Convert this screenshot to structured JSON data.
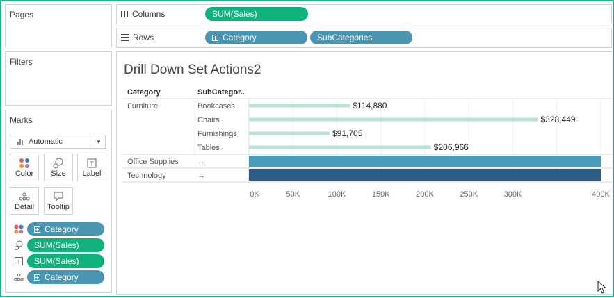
{
  "shelves": {
    "pages_title": "Pages",
    "filters_title": "Filters",
    "marks_title": "Marks",
    "columns_label": "Columns",
    "rows_label": "Rows",
    "columns_pill": "SUM(Sales)",
    "rows_pills": [
      "Category",
      "SubCategories"
    ]
  },
  "marks": {
    "mark_type": "Automatic",
    "buttons": [
      "Color",
      "Size",
      "Label",
      "Detail",
      "Tooltip"
    ],
    "cards": [
      {
        "icon": "color-dots-icon",
        "label": "Category",
        "color": "blue"
      },
      {
        "icon": "size-icon",
        "label": "SUM(Sales)",
        "color": "green"
      },
      {
        "icon": "label-icon",
        "label": "SUM(Sales)",
        "color": "green"
      },
      {
        "icon": "detail-icon",
        "label": "Category",
        "color": "blue"
      }
    ]
  },
  "view": {
    "title": "Drill Down Set Actions2",
    "header_category": "Category",
    "header_subcategory": "SubCategor.."
  },
  "chart_data": {
    "type": "bar",
    "orientation": "horizontal",
    "x_axis_ticks": [
      "0K",
      "50K",
      "100K",
      "150K",
      "200K",
      "250K",
      "300K",
      "400K"
    ],
    "xlim": [
      0,
      400000
    ],
    "rows": [
      {
        "category": "Furniture",
        "subcategory": "Bookcases",
        "value": 114880,
        "label": "$114,880",
        "color": "#b8e2d8",
        "thin": true
      },
      {
        "category": "",
        "subcategory": "Chairs",
        "value": 328449,
        "label": "$328,449",
        "color": "#b8e2d8",
        "thin": true
      },
      {
        "category": "",
        "subcategory": "Furnishings",
        "value": 91705,
        "label": "$91,705",
        "color": "#b8e2d8",
        "thin": true
      },
      {
        "category": "",
        "subcategory": "Tables",
        "value": 206966,
        "label": "$206,966",
        "color": "#b8e2d8",
        "thin": true
      },
      {
        "category": "Office Supplies",
        "subcategory": "→",
        "value": 400000,
        "label": "",
        "color": "#4a9bb8",
        "thin": false
      },
      {
        "category": "Technology",
        "subcategory": "→",
        "value": 400000,
        "label": "",
        "color": "#2c5b86",
        "thin": false
      }
    ],
    "colors": {
      "accent_green": "#0fb17c",
      "accent_blue": "#4a95b2"
    }
  }
}
